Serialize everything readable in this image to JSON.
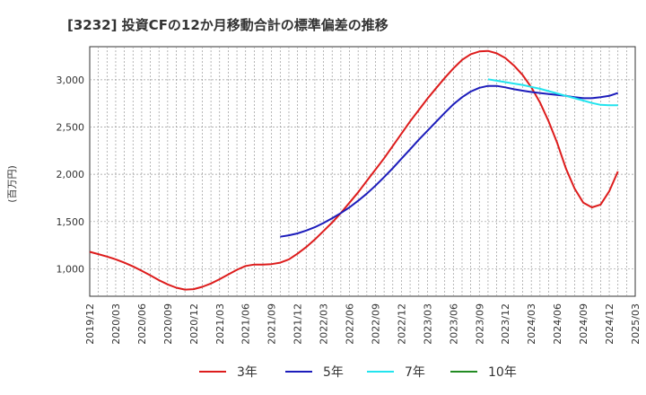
{
  "chart_data": {
    "type": "line",
    "title": "[3232]  投資CFの12か月移動合計の標準偏差の推移",
    "ylabel": "(百万円)",
    "xlabel": "",
    "x_ticks": [
      "2019/12",
      "2020/03",
      "2020/06",
      "2020/09",
      "2020/12",
      "2021/03",
      "2021/06",
      "2021/09",
      "2021/12",
      "2022/03",
      "2022/06",
      "2022/09",
      "2022/12",
      "2023/03",
      "2023/06",
      "2023/09",
      "2023/12",
      "2024/03",
      "2024/06",
      "2024/09",
      "2024/12",
      "2025/03"
    ],
    "y_ticks": [
      1000,
      1500,
      2000,
      2500,
      3000
    ],
    "y_tick_labels": [
      "1,000",
      "1,500",
      "2,000",
      "2,500",
      "3,000"
    ],
    "ylim": [
      710,
      3350
    ],
    "grid": true,
    "legend_position": "bottom",
    "series": [
      {
        "name": "3年",
        "color": "#dd1c1c",
        "points": [
          [
            "2019/12",
            1180
          ],
          [
            "2020/01",
            1155
          ],
          [
            "2020/02",
            1130
          ],
          [
            "2020/03",
            1100
          ],
          [
            "2020/04",
            1065
          ],
          [
            "2020/05",
            1025
          ],
          [
            "2020/06",
            980
          ],
          [
            "2020/07",
            930
          ],
          [
            "2020/08",
            880
          ],
          [
            "2020/09",
            835
          ],
          [
            "2020/10",
            800
          ],
          [
            "2020/11",
            780
          ],
          [
            "2020/12",
            785
          ],
          [
            "2021/01",
            810
          ],
          [
            "2021/02",
            845
          ],
          [
            "2021/03",
            890
          ],
          [
            "2021/04",
            940
          ],
          [
            "2021/05",
            990
          ],
          [
            "2021/06",
            1030
          ],
          [
            "2021/07",
            1045
          ],
          [
            "2021/08",
            1045
          ],
          [
            "2021/09",
            1050
          ],
          [
            "2021/10",
            1065
          ],
          [
            "2021/11",
            1100
          ],
          [
            "2021/12",
            1160
          ],
          [
            "2022/01",
            1230
          ],
          [
            "2022/02",
            1310
          ],
          [
            "2022/03",
            1400
          ],
          [
            "2022/04",
            1490
          ],
          [
            "2022/05",
            1590
          ],
          [
            "2022/06",
            1700
          ],
          [
            "2022/07",
            1810
          ],
          [
            "2022/08",
            1930
          ],
          [
            "2022/09",
            2050
          ],
          [
            "2022/10",
            2170
          ],
          [
            "2022/11",
            2300
          ],
          [
            "2022/12",
            2430
          ],
          [
            "2023/01",
            2560
          ],
          [
            "2023/02",
            2680
          ],
          [
            "2023/03",
            2800
          ],
          [
            "2023/04",
            2910
          ],
          [
            "2023/05",
            3020
          ],
          [
            "2023/06",
            3120
          ],
          [
            "2023/07",
            3210
          ],
          [
            "2023/08",
            3270
          ],
          [
            "2023/09",
            3300
          ],
          [
            "2023/10",
            3305
          ],
          [
            "2023/11",
            3280
          ],
          [
            "2023/12",
            3230
          ],
          [
            "2024/01",
            3150
          ],
          [
            "2024/02",
            3050
          ],
          [
            "2024/03",
            2920
          ],
          [
            "2024/04",
            2760
          ],
          [
            "2024/05",
            2560
          ],
          [
            "2024/06",
            2330
          ],
          [
            "2024/07",
            2060
          ],
          [
            "2024/08",
            1850
          ],
          [
            "2024/09",
            1700
          ],
          [
            "2024/10",
            1650
          ],
          [
            "2024/11",
            1680
          ],
          [
            "2024/12",
            1820
          ],
          [
            "2025/01",
            2030
          ]
        ]
      },
      {
        "name": "5年",
        "color": "#1c1cbb",
        "points": [
          [
            "2021/10",
            1340
          ],
          [
            "2021/11",
            1355
          ],
          [
            "2021/12",
            1375
          ],
          [
            "2022/01",
            1405
          ],
          [
            "2022/02",
            1440
          ],
          [
            "2022/03",
            1485
          ],
          [
            "2022/04",
            1535
          ],
          [
            "2022/05",
            1590
          ],
          [
            "2022/06",
            1650
          ],
          [
            "2022/07",
            1720
          ],
          [
            "2022/08",
            1795
          ],
          [
            "2022/09",
            1880
          ],
          [
            "2022/10",
            1970
          ],
          [
            "2022/11",
            2065
          ],
          [
            "2022/12",
            2165
          ],
          [
            "2023/01",
            2265
          ],
          [
            "2023/02",
            2365
          ],
          [
            "2023/03",
            2460
          ],
          [
            "2023/04",
            2555
          ],
          [
            "2023/05",
            2650
          ],
          [
            "2023/06",
            2740
          ],
          [
            "2023/07",
            2815
          ],
          [
            "2023/08",
            2875
          ],
          [
            "2023/09",
            2915
          ],
          [
            "2023/10",
            2935
          ],
          [
            "2023/11",
            2935
          ],
          [
            "2023/12",
            2920
          ],
          [
            "2024/01",
            2900
          ],
          [
            "2024/02",
            2885
          ],
          [
            "2024/03",
            2870
          ],
          [
            "2024/04",
            2860
          ],
          [
            "2024/05",
            2850
          ],
          [
            "2024/06",
            2840
          ],
          [
            "2024/07",
            2830
          ],
          [
            "2024/08",
            2815
          ],
          [
            "2024/09",
            2805
          ],
          [
            "2024/10",
            2805
          ],
          [
            "2024/11",
            2815
          ],
          [
            "2024/12",
            2830
          ],
          [
            "2025/01",
            2860
          ]
        ]
      },
      {
        "name": "7年",
        "color": "#22e4ee",
        "points": [
          [
            "2023/10",
            3005
          ],
          [
            "2023/11",
            2990
          ],
          [
            "2023/12",
            2975
          ],
          [
            "2024/01",
            2960
          ],
          [
            "2024/02",
            2945
          ],
          [
            "2024/03",
            2925
          ],
          [
            "2024/04",
            2905
          ],
          [
            "2024/05",
            2880
          ],
          [
            "2024/06",
            2855
          ],
          [
            "2024/07",
            2830
          ],
          [
            "2024/08",
            2805
          ],
          [
            "2024/09",
            2780
          ],
          [
            "2024/10",
            2755
          ],
          [
            "2024/11",
            2735
          ],
          [
            "2024/12",
            2730
          ],
          [
            "2025/01",
            2730
          ]
        ]
      },
      {
        "name": "10年",
        "color": "#228b22",
        "points": []
      }
    ]
  }
}
